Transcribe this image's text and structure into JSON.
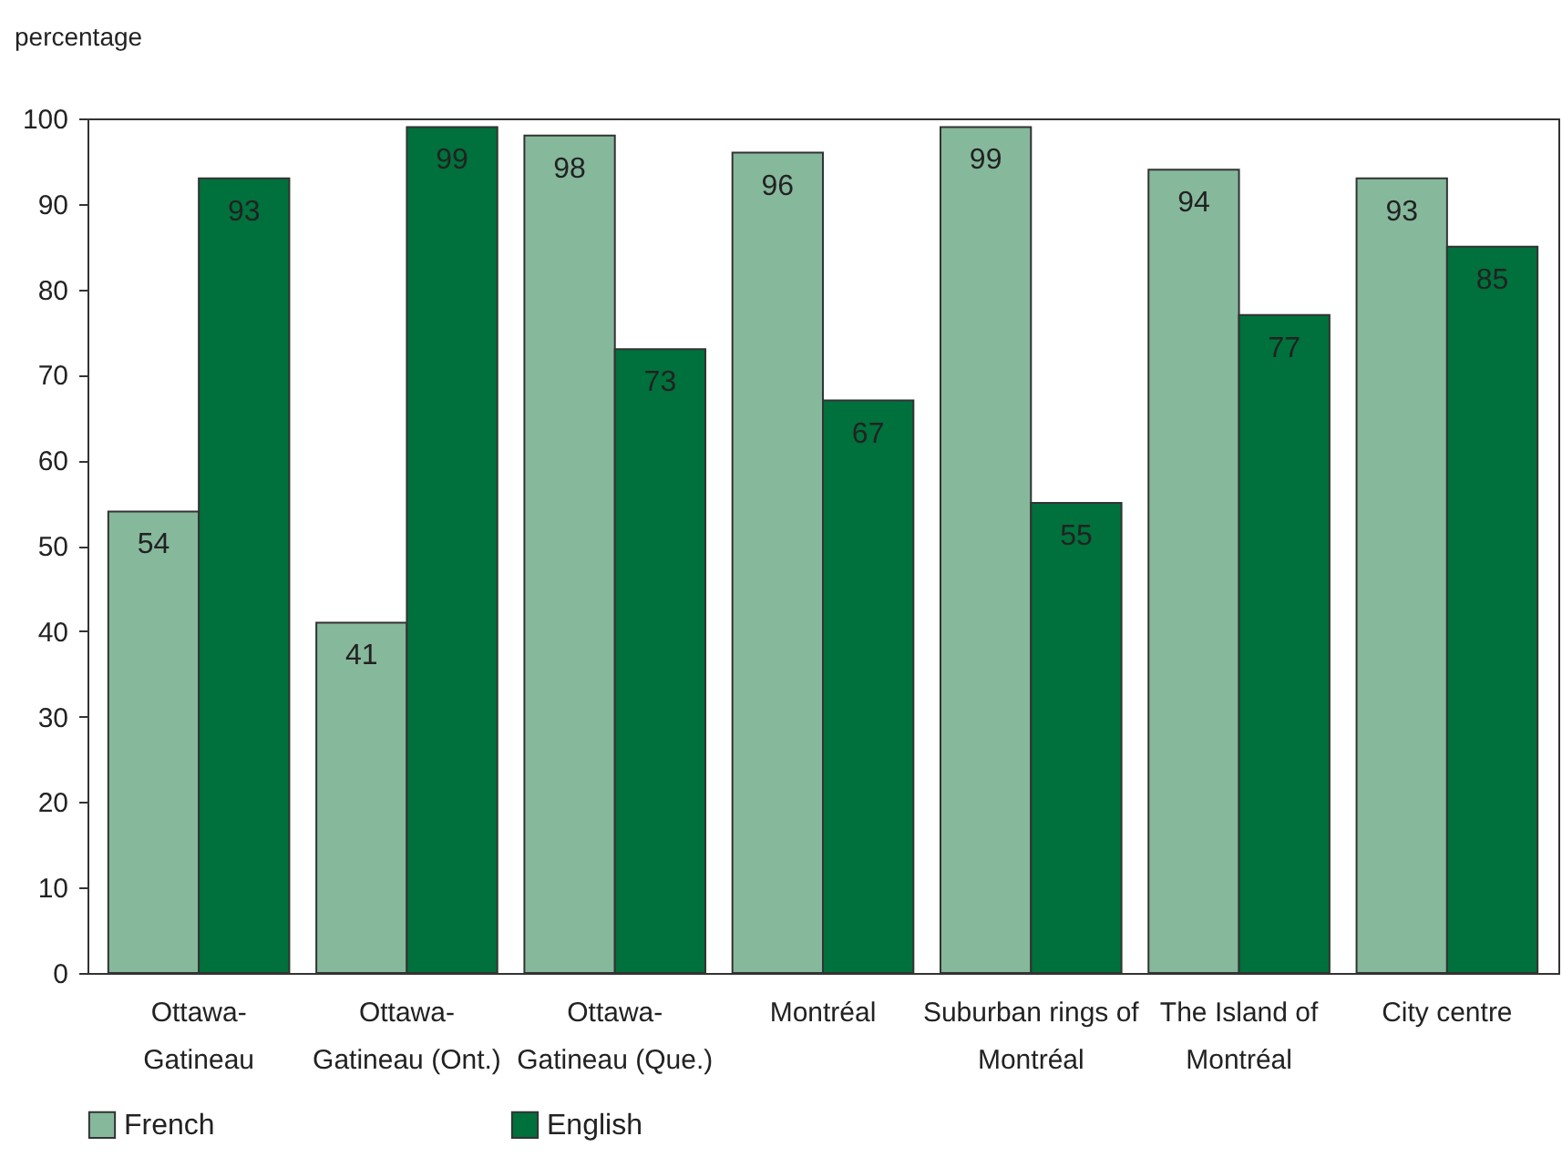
{
  "chart_data": {
    "type": "bar",
    "ylabel": "percentage",
    "categories": [
      "Ottawa-Gatineau",
      "Ottawa-Gatineau (Ont.)",
      "Ottawa-Gatineau (Que.)",
      "Montréal",
      "Suburban rings of Montréal",
      "The Island of Montréal",
      "City centre"
    ],
    "series": [
      {
        "name": "French",
        "color": "#86b89c",
        "values": [
          54,
          41,
          98,
          96,
          99,
          94,
          93
        ]
      },
      {
        "name": "English",
        "color": "#00703c",
        "values": [
          93,
          99,
          73,
          67,
          55,
          77,
          85
        ]
      }
    ],
    "ylim": [
      0,
      100
    ],
    "yticks": [
      0,
      10,
      20,
      30,
      40,
      50,
      60,
      70,
      80,
      90,
      100
    ],
    "grid": false,
    "legend": "bottom",
    "data_labels": true
  }
}
